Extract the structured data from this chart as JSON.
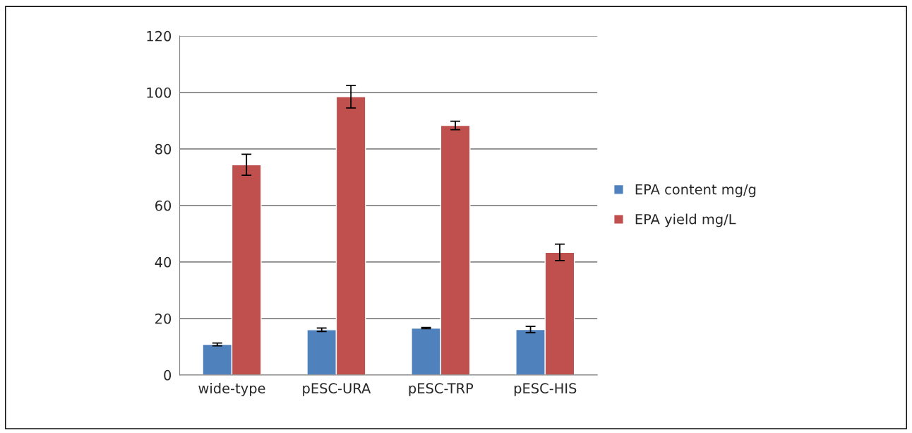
{
  "chart_data": {
    "type": "bar",
    "categories": [
      "wide-type",
      "pESC-URA",
      "pESC-TRP",
      "pESC-HIS"
    ],
    "series": [
      {
        "name": "EPA content mg/g",
        "color": "#4f81bd",
        "values": [
          10.8,
          16,
          16.6,
          16.1
        ],
        "errors": [
          0.5,
          0.6,
          0.2,
          1.1
        ]
      },
      {
        "name": "EPA yield mg/L",
        "color": "#c0504d",
        "values": [
          74.4,
          98.5,
          88.3,
          43.4
        ],
        "errors": [
          3.7,
          4,
          1.5,
          2.9
        ]
      }
    ],
    "ylim": [
      0,
      120
    ],
    "yticks": [
      0,
      20,
      40,
      60,
      80,
      100,
      120
    ],
    "grid": "y",
    "legend": "right"
  }
}
